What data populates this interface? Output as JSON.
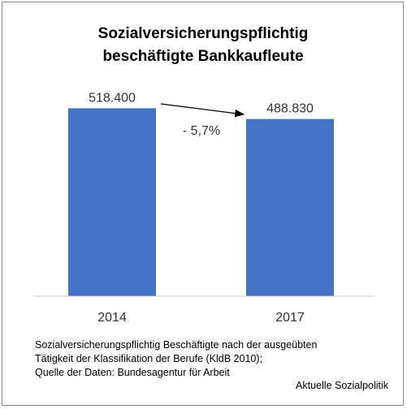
{
  "chart_data": {
    "type": "bar",
    "title_lines": [
      "Sozialversicherungspflichtig",
      "beschäftigte Bankkaufleute"
    ],
    "categories": [
      "2014",
      "2017"
    ],
    "values": [
      518400,
      488830
    ],
    "value_labels": [
      "518.400",
      "488.830"
    ],
    "change_label": "- 5,7%",
    "ylim": [
      0,
      535000
    ],
    "grid": false,
    "legend": "none",
    "bar_color": "#4472c4",
    "footnote_lines": [
      "Sozialversicherungspflichtig Beschäftigte nach der ausgeübten",
      "Tätigkeit der Klassifikation der Berufe (KldB 2010);",
      "Quelle der Daten: Bundesagentur für Arbeit"
    ],
    "source": "Aktuelle Sozialpolitik"
  }
}
